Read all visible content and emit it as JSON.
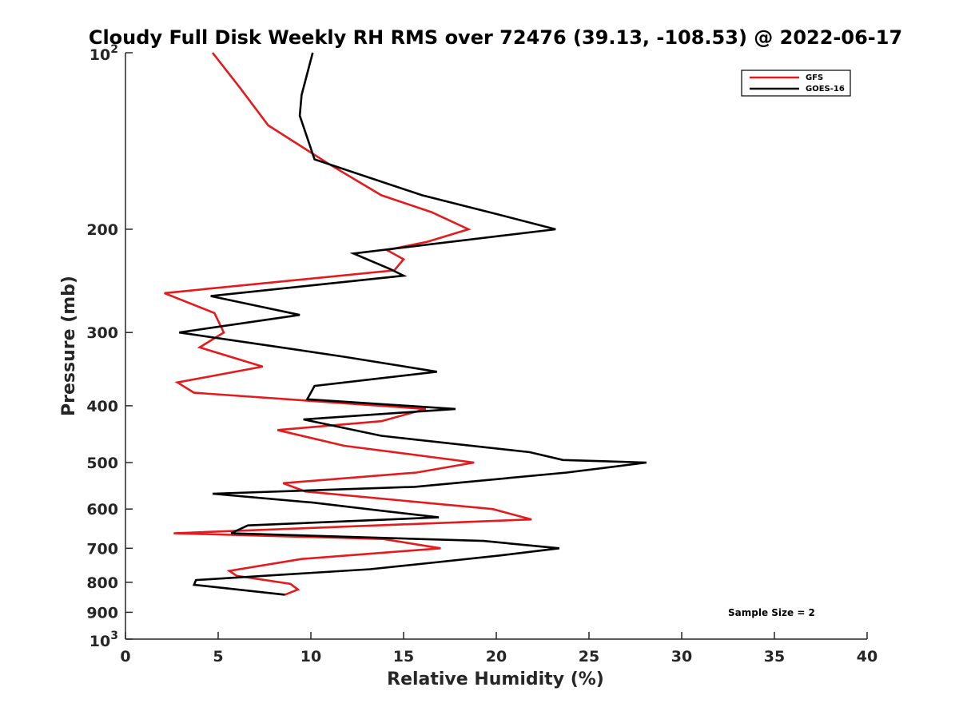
{
  "chart_data": {
    "type": "line",
    "title": "Cloudy Full Disk Weekly RH RMS over 72476 (39.13, -108.53) @ 2022-06-17",
    "xlabel": "Relative Humidity (%)",
    "ylabel": "Pressure (mb)",
    "xlim": [
      0,
      40
    ],
    "ylim": [
      100,
      1000
    ],
    "y_scale": "log",
    "y_reversed": true,
    "x_ticks": [
      "0",
      "5",
      "10",
      "15",
      "20",
      "25",
      "30",
      "35",
      "40"
    ],
    "y_ticks": [
      {
        "value": 100,
        "base": "10",
        "exp": "2"
      },
      {
        "value": 200,
        "label": "200"
      },
      {
        "value": 300,
        "label": "300"
      },
      {
        "value": 400,
        "label": "400"
      },
      {
        "value": 500,
        "label": "500"
      },
      {
        "value": 600,
        "label": "600"
      },
      {
        "value": 700,
        "label": "700"
      },
      {
        "value": 800,
        "label": "800"
      },
      {
        "value": 900,
        "label": "900"
      },
      {
        "value": 1000,
        "base": "10",
        "exp": "3"
      }
    ],
    "grid": false,
    "legend_position": "top-right",
    "annotation": "Sample Size = 2",
    "series": [
      {
        "name": "GFS",
        "color": "#e41a1c",
        "points": [
          [
            4.7,
            100
          ],
          [
            6.2,
            115
          ],
          [
            7.7,
            133
          ],
          [
            11.0,
            155
          ],
          [
            13.8,
            175
          ],
          [
            16.5,
            187
          ],
          [
            18.5,
            200
          ],
          [
            16.3,
            210
          ],
          [
            14.1,
            217
          ],
          [
            15.0,
            225
          ],
          [
            14.5,
            235
          ],
          [
            2.1,
            257
          ],
          [
            4.8,
            278
          ],
          [
            5.3,
            300
          ],
          [
            4.0,
            318
          ],
          [
            7.4,
            343
          ],
          [
            2.8,
            365
          ],
          [
            3.7,
            380
          ],
          [
            16.2,
            405
          ],
          [
            13.8,
            425
          ],
          [
            8.2,
            440
          ],
          [
            11.8,
            468
          ],
          [
            18.8,
            500
          ],
          [
            15.7,
            520
          ],
          [
            8.5,
            542
          ],
          [
            9.7,
            560
          ],
          [
            19.8,
            600
          ],
          [
            21.9,
            625
          ],
          [
            2.6,
            660
          ],
          [
            13.9,
            675
          ],
          [
            17.0,
            700
          ],
          [
            9.5,
            730
          ],
          [
            5.6,
            765
          ],
          [
            6.0,
            780
          ],
          [
            8.9,
            805
          ],
          [
            9.3,
            823
          ],
          [
            8.6,
            840
          ]
        ]
      },
      {
        "name": "GOES-16",
        "color": "#000000",
        "points": [
          [
            10.1,
            100
          ],
          [
            9.5,
            118
          ],
          [
            9.4,
            128
          ],
          [
            10.2,
            152
          ],
          [
            16.0,
            175
          ],
          [
            19.9,
            188
          ],
          [
            23.2,
            200
          ],
          [
            12.3,
            220
          ],
          [
            14.3,
            234
          ],
          [
            15.0,
            240
          ],
          [
            4.6,
            260
          ],
          [
            9.4,
            280
          ],
          [
            2.9,
            300
          ],
          [
            7.5,
            315
          ],
          [
            11.8,
            330
          ],
          [
            16.8,
            350
          ],
          [
            10.2,
            370
          ],
          [
            9.8,
            390
          ],
          [
            17.8,
            405
          ],
          [
            9.6,
            422
          ],
          [
            13.8,
            450
          ],
          [
            21.8,
            480
          ],
          [
            23.6,
            495
          ],
          [
            28.1,
            500
          ],
          [
            23.8,
            520
          ],
          [
            15.6,
            550
          ],
          [
            4.7,
            565
          ],
          [
            10.1,
            585
          ],
          [
            14.0,
            605
          ],
          [
            16.9,
            620
          ],
          [
            6.6,
            640
          ],
          [
            5.7,
            660
          ],
          [
            19.3,
            680
          ],
          [
            23.4,
            700
          ],
          [
            20.2,
            720
          ],
          [
            16.7,
            740
          ],
          [
            13.2,
            760
          ],
          [
            3.8,
            793
          ],
          [
            3.7,
            808
          ],
          [
            8.6,
            840
          ]
        ]
      }
    ]
  }
}
